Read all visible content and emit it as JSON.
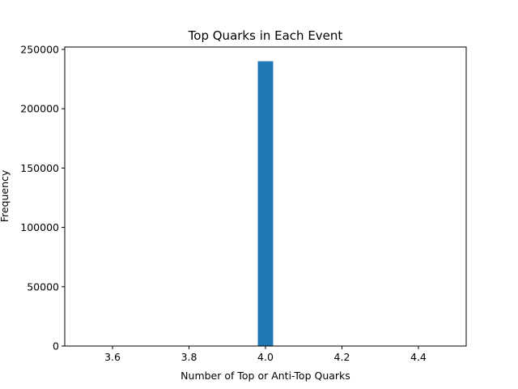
{
  "chart_data": {
    "type": "bar",
    "title": "Top Quarks in Each Event",
    "xlabel": "Number of Top or Anti-Top Quarks",
    "ylabel": "Frequency",
    "xlim": [
      3.475,
      4.525
    ],
    "ylim": [
      0,
      252000
    ],
    "xticks": [
      3.6,
      3.8,
      4.0,
      4.2,
      4.4
    ],
    "xtick_labels": [
      "3.6",
      "3.8",
      "4.0",
      "4.2",
      "4.4"
    ],
    "yticks": [
      0,
      50000,
      100000,
      150000,
      200000,
      250000
    ],
    "ytick_labels": [
      "0",
      "50000",
      "100000",
      "150000",
      "200000",
      "250000"
    ],
    "bars": [
      {
        "x_start": 3.98,
        "x_end": 4.02,
        "value": 240000
      }
    ],
    "bar_color": "#1f77b4",
    "grid": false,
    "legend": "none"
  }
}
